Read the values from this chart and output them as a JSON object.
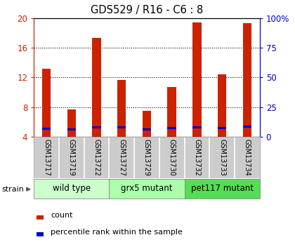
{
  "title": "GDS529 / R16 - C6 : 8",
  "samples": [
    "GSM13717",
    "GSM13719",
    "GSM13722",
    "GSM13727",
    "GSM13729",
    "GSM13730",
    "GSM13732",
    "GSM13733",
    "GSM13734"
  ],
  "counts": [
    13.2,
    7.7,
    17.3,
    11.7,
    7.5,
    10.7,
    19.4,
    12.4,
    19.3
  ],
  "percentile_values": [
    7.0,
    6.2,
    8.0,
    7.9,
    6.4,
    7.1,
    7.8,
    7.4,
    8.5
  ],
  "bar_color": "#cc2200",
  "percentile_color": "#0000cc",
  "ylim_left": [
    4,
    20
  ],
  "ylim_right": [
    0,
    100
  ],
  "yticks_left": [
    4,
    8,
    12,
    16,
    20
  ],
  "yticks_right": [
    0,
    25,
    50,
    75,
    100
  ],
  "ytick_labels_right": [
    "0",
    "25",
    "50",
    "75",
    "100%"
  ],
  "groups": [
    {
      "label": "wild type",
      "indices": [
        0,
        1,
        2
      ],
      "color": "#ccffcc"
    },
    {
      "label": "grx5 mutant",
      "indices": [
        3,
        4,
        5
      ],
      "color": "#aaffaa"
    },
    {
      "label": "pet117 mutant",
      "indices": [
        6,
        7,
        8
      ],
      "color": "#55dd55"
    }
  ],
  "strain_label": "strain",
  "legend_count_label": "count",
  "legend_percentile_label": "percentile rank within the sample",
  "bar_color_label": "#cc2200",
  "right_axis_color": "#0000cc",
  "tick_label_area_color": "#cccccc",
  "bar_width": 0.35
}
